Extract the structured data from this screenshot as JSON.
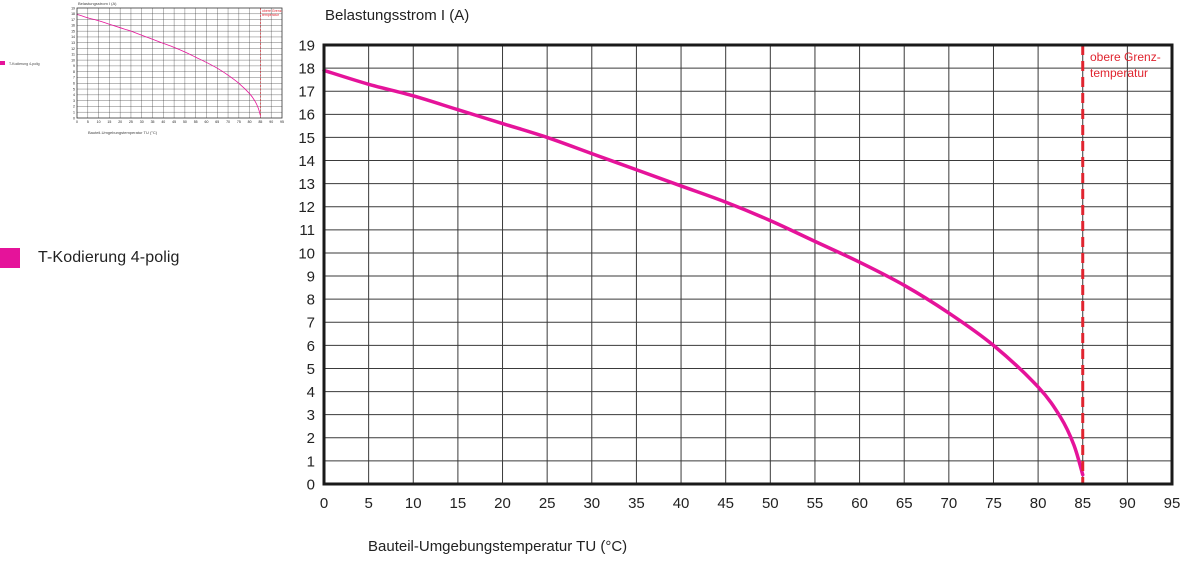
{
  "legend": {
    "label": "T-Kodierung 4-polig",
    "color": "#e5139a"
  },
  "chart_data": {
    "type": "line",
    "title": "",
    "ylabel": "Belastungsstrom I (A)",
    "xlabel": "Bauteil-Umgebungstemperatur TU (°C)",
    "xlim": [
      0,
      95
    ],
    "ylim": [
      0,
      19
    ],
    "x_ticks": [
      0,
      5,
      10,
      15,
      20,
      25,
      30,
      35,
      40,
      45,
      50,
      55,
      60,
      65,
      70,
      75,
      80,
      85,
      90,
      95
    ],
    "y_ticks": [
      0,
      1,
      2,
      3,
      4,
      5,
      6,
      7,
      8,
      9,
      10,
      11,
      12,
      13,
      14,
      15,
      16,
      17,
      18,
      19
    ],
    "grid": true,
    "series": [
      {
        "name": "T-Kodierung 4-polig",
        "color": "#e5139a",
        "x": [
          0,
          5,
          10,
          15,
          20,
          25,
          30,
          35,
          40,
          45,
          50,
          55,
          60,
          65,
          70,
          75,
          80,
          82.5,
          84,
          85
        ],
        "y": [
          17.9,
          17.3,
          16.8,
          16.2,
          15.6,
          15.0,
          14.3,
          13.6,
          12.9,
          12.2,
          11.4,
          10.5,
          9.6,
          8.6,
          7.4,
          6.0,
          4.2,
          2.9,
          1.7,
          0.4
        ]
      }
    ],
    "limit_line": {
      "x": 85,
      "color": "#e0242f",
      "label_lines": [
        "obere Grenz-",
        "temperatur"
      ]
    }
  }
}
